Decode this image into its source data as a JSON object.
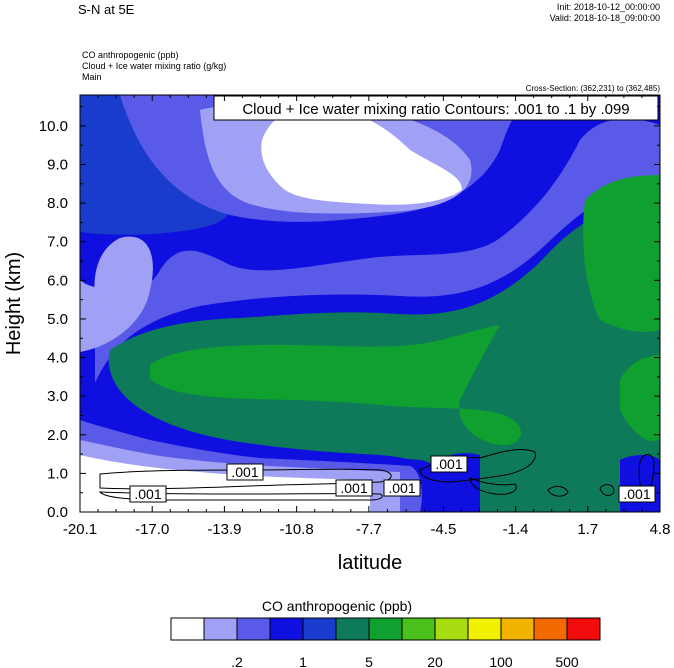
{
  "header": {
    "title": "S-N at 5E",
    "init": "Init: 2018-10-12_00:00:00",
    "valid": "Valid: 2018-10-18_09:00:00",
    "fields": [
      "CO anthropogenic   (ppb)",
      "Cloud + Ice water mixing ratio   (g/kg)",
      "Main"
    ],
    "cross_section": "Cross-Section: (362,231) to (362,485)"
  },
  "chart_data": {
    "type": "heatmap",
    "contour_label": "Cloud + Ice water mixing ratio Contours: .001 to .1 by .099",
    "contour_value_labels": [
      ".001",
      ".001",
      ".001",
      ".001",
      ".001",
      ".001"
    ],
    "xlabel": "latitude",
    "ylabel": "Height (km)",
    "x_ticks": [
      "-20.1",
      "-17.0",
      "-13.9",
      "-10.8",
      "-7.7",
      "-4.5",
      "-1.4",
      "1.7",
      "4.8"
    ],
    "x_tick_values": [
      -20.1,
      -17.0,
      -13.9,
      -10.8,
      -7.7,
      -4.5,
      -1.4,
      1.7,
      4.8
    ],
    "y_ticks": [
      "0.0",
      "1.0",
      "2.0",
      "3.0",
      "4.0",
      "5.0",
      "6.0",
      "7.0",
      "8.0",
      "9.0",
      "10.0"
    ],
    "y_tick_values": [
      0,
      1,
      2,
      3,
      4,
      5,
      6,
      7,
      8,
      9,
      10
    ],
    "xlim": [
      -20.1,
      4.8
    ],
    "ylim": [
      0,
      10.8
    ],
    "colorbar": {
      "title": "CO anthropogenic  (ppb)",
      "colors": [
        "#ffffff",
        "#a0a0f5",
        "#5a5ae8",
        "#0f0fe0",
        "#1a3ccc",
        "#0f7a5a",
        "#10a030",
        "#4cc01c",
        "#a6dc10",
        "#f2f200",
        "#f2b200",
        "#f26a00",
        "#f20c0c"
      ],
      "tick_labels": [
        ".2",
        "1",
        "5",
        "20",
        "100",
        "500"
      ]
    },
    "palette": {
      "white": "#ffffff",
      "light_blue": "#a0a0f5",
      "med_blue": "#5a5ae8",
      "blue": "#0f0fe0",
      "dark_blue": "#1a3ccc",
      "teal": "#0f7a5a",
      "green": "#10a030"
    }
  }
}
